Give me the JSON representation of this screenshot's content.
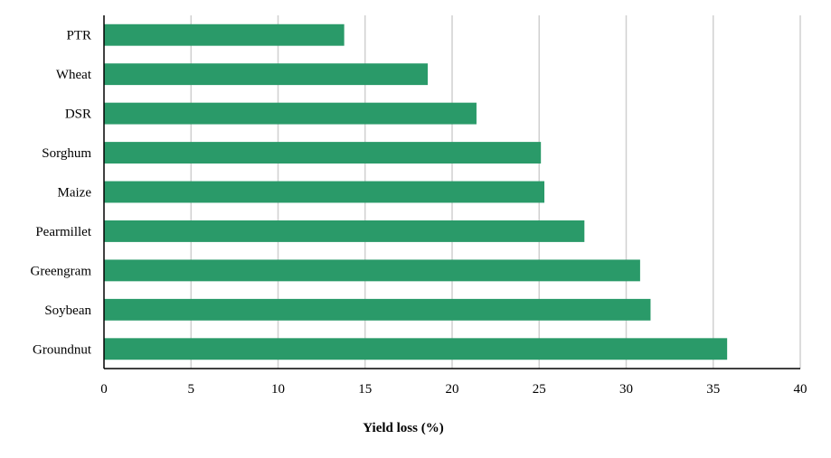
{
  "chart_data": {
    "type": "bar",
    "orientation": "horizontal",
    "categories": [
      "PTR",
      "Wheat",
      "DSR",
      "Sorghum",
      "Maize",
      "Pearmillet",
      "Greengram",
      "Soybean",
      "Groundnut"
    ],
    "values": [
      13.8,
      18.6,
      21.4,
      25.1,
      25.3,
      27.6,
      30.8,
      31.4,
      35.8
    ],
    "xlabel": "Yield loss (%)",
    "ylabel": "",
    "xlim": [
      0,
      40
    ],
    "xticks": [
      0,
      5,
      10,
      15,
      20,
      25,
      30,
      35,
      40
    ],
    "grid": "vertical",
    "legend": "none",
    "bar_color": "#2a9a69"
  }
}
